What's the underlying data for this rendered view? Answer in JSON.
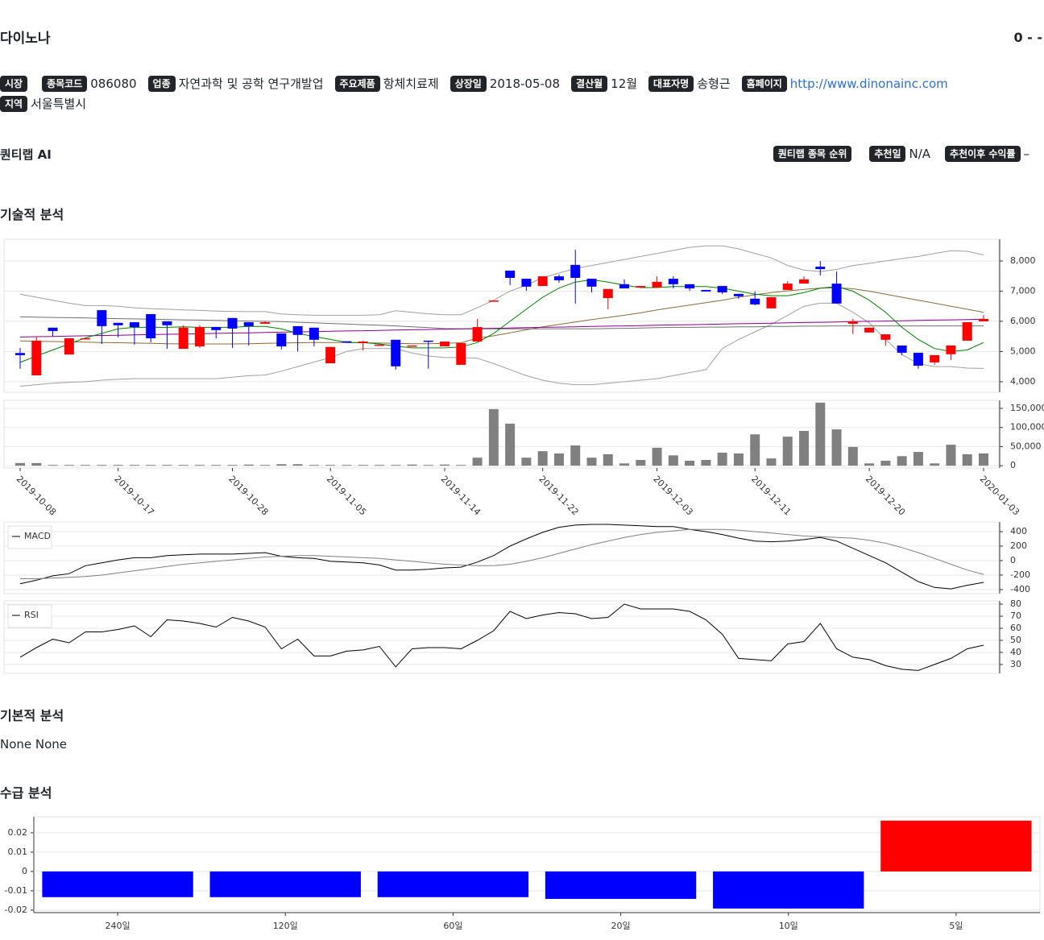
{
  "header": {
    "title": "다이노나",
    "price": "0 - -"
  },
  "info": [
    {
      "label": "시장"
    },
    {
      "label": "종목코드",
      "value": "086080"
    },
    {
      "label": "업종",
      "value": "자연과학 및 공학 연구개발업"
    },
    {
      "label": "주요제품",
      "value": "항체치료제"
    },
    {
      "label": "상장일",
      "value": "2018-05-08"
    },
    {
      "label": "결산월",
      "value": "12월"
    },
    {
      "label": "대표자명",
      "value": "송형근"
    },
    {
      "label": "홈페이지",
      "value": "http://www.dinonainc.com",
      "link": true
    },
    {
      "label": "지역",
      "value": "서울특별시"
    }
  ],
  "ai": {
    "title": "퀀티랩 AI",
    "items": [
      {
        "label": "퀀티랩 종목 순위"
      },
      {
        "label": "추천일",
        "value": "N/A"
      },
      {
        "label": "추천이후 수익률",
        "value": "–"
      }
    ]
  },
  "sections": {
    "technical": "기술적 분석",
    "fundamental": "기본적 분석",
    "fundamental_text": "None None",
    "supply": "수급 분석"
  },
  "chart_data": [
    {
      "type": "candlestick",
      "up_color": "#ff0000",
      "down_color": "#0000ff",
      "grid": true,
      "open": [
        4950,
        4210,
        5790,
        4900,
        5440,
        6370,
        5950,
        5970,
        6240,
        6000,
        5090,
        5170,
        5810,
        6110,
        5970,
        5920,
        5600,
        5840,
        5790,
        4610,
        5340,
        5280,
        5200,
        5390,
        5180,
        5360,
        5170,
        4560,
        5330,
        6670,
        7680,
        7410,
        7170,
        7490,
        7870,
        7410,
        6770,
        7230,
        7120,
        7120,
        7410,
        7230,
        7040,
        7170,
        6910,
        6750,
        6430,
        7040,
        7250,
        7810,
        7250,
        5920,
        5630,
        5390,
        5200,
        4960,
        4640,
        4910,
        5360,
        6000
      ],
      "high": [
        5120,
        5490,
        5790,
        5440,
        5440,
        6370,
        5950,
        5970,
        6240,
        6000,
        5870,
        5870,
        5810,
        6110,
        5970,
        6000,
        5600,
        5840,
        5790,
        5150,
        5340,
        5360,
        5230,
        5390,
        5200,
        5360,
        5330,
        5280,
        6080,
        6690,
        7680,
        7410,
        7490,
        7550,
        8370,
        7410,
        7070,
        7390,
        7170,
        7490,
        7490,
        7230,
        7040,
        7170,
        6910,
        6990,
        6800,
        7330,
        7490,
        8000,
        7650,
        6080,
        5790,
        5570,
        5200,
        4960,
        4880,
        5200,
        5970,
        6210
      ],
      "low": [
        4430,
        4210,
        5500,
        4900,
        5440,
        5250,
        5470,
        5230,
        5300,
        5090,
        5090,
        5120,
        5440,
        5120,
        5200,
        5920,
        5070,
        5000,
        5170,
        4610,
        5320,
        5030,
        5200,
        4400,
        5180,
        4430,
        5170,
        4560,
        5330,
        6670,
        7200,
        7010,
        7170,
        7280,
        6590,
        6960,
        6400,
        7090,
        7120,
        7120,
        7090,
        7010,
        6990,
        6900,
        6750,
        6530,
        6430,
        7040,
        7250,
        7520,
        6590,
        5580,
        5630,
        5200,
        4880,
        4430,
        4560,
        4720,
        5360,
        6000
      ],
      "close": [
        4880,
        5360,
        5680,
        5440,
        5440,
        5840,
        5870,
        5810,
        5440,
        5870,
        5790,
        5810,
        5710,
        5760,
        5840,
        5970,
        5170,
        5550,
        5390,
        5150,
        5320,
        5330,
        5230,
        4510,
        5200,
        5330,
        5330,
        5280,
        5810,
        6690,
        7440,
        7150,
        7490,
        7360,
        7440,
        7150,
        7070,
        7090,
        7170,
        7310,
        7230,
        7090,
        6990,
        6960,
        6830,
        6560,
        6800,
        7250,
        7390,
        7730,
        6590,
        6000,
        5790,
        5570,
        4960,
        4530,
        4880,
        5200,
        5970,
        6080
      ],
      "lines": [
        {
          "color": "#a0a0a0",
          "values": [
            6900,
            6800,
            6700,
            6600,
            6520,
            6520,
            6500,
            6450,
            6420,
            6400,
            6380,
            6360,
            6340,
            6330,
            6320,
            6320,
            6240,
            6220,
            6200,
            6200,
            6200,
            6200,
            6220,
            6350,
            6300,
            6250,
            6220,
            6220,
            6450,
            6700,
            7000,
            7200,
            7450,
            7600,
            7750,
            7850,
            7950,
            8050,
            8150,
            8250,
            8350,
            8450,
            8500,
            8500,
            8400,
            8250,
            8100,
            7850,
            7700,
            7650,
            7720,
            7850,
            7920,
            8000,
            8080,
            8150,
            8250,
            8340,
            8320,
            8200
          ]
        },
        {
          "color": "#a0a0a0",
          "values": [
            3850,
            3900,
            3950,
            3980,
            4000,
            4050,
            4080,
            4100,
            4100,
            4100,
            4100,
            4100,
            4100,
            4150,
            4200,
            4220,
            4350,
            4500,
            4650,
            4800,
            5000,
            5100,
            5100,
            5100,
            4950,
            4850,
            4800,
            4800,
            4780,
            4600,
            4400,
            4200,
            4050,
            3950,
            3900,
            3900,
            3950,
            4000,
            4050,
            4100,
            4200,
            4300,
            4400,
            5100,
            5400,
            5650,
            5900,
            6200,
            6500,
            6600,
            6600,
            6300,
            5950,
            5400,
            4900,
            4600,
            4500,
            4500,
            4450,
            4440
          ]
        },
        {
          "color": "#707070",
          "values": [
            6150,
            6140,
            6130,
            6120,
            6110,
            6100,
            6090,
            6080,
            6070,
            6060,
            6050,
            6040,
            6030,
            6020,
            6010,
            6000,
            5990,
            5970,
            5950,
            5930,
            5910,
            5890,
            5870,
            5850,
            5820,
            5790,
            5760,
            5750,
            5750,
            5750,
            5750,
            5750,
            5750,
            5750,
            5750,
            5750,
            5760,
            5770,
            5780,
            5790,
            5800,
            5800,
            5810,
            5810,
            5820,
            5820,
            5830,
            5830,
            5840,
            5840,
            5850,
            5850,
            5850,
            5850,
            5850,
            5850,
            5850,
            5850,
            5850,
            5850
          ]
        },
        {
          "color": "#8b6b3d",
          "values": [
            5350,
            5340,
            5330,
            5320,
            5310,
            5300,
            5290,
            5280,
            5270,
            5260,
            5250,
            5250,
            5250,
            5250,
            5260,
            5270,
            5280,
            5290,
            5300,
            5300,
            5300,
            5290,
            5280,
            5270,
            5260,
            5260,
            5270,
            5290,
            5440,
            5520,
            5620,
            5720,
            5820,
            5900,
            5980,
            6060,
            6130,
            6200,
            6280,
            6380,
            6460,
            6540,
            6620,
            6700,
            6800,
            6880,
            6950,
            7010,
            7060,
            7100,
            7110,
            7080,
            7000,
            6900,
            6800,
            6700,
            6600,
            6500,
            6400,
            6300
          ]
        },
        {
          "color": "#8b008b",
          "values": [
            5480,
            5490,
            5500,
            5510,
            5520,
            5530,
            5540,
            5550,
            5560,
            5570,
            5580,
            5590,
            5600,
            5610,
            5620,
            5630,
            5640,
            5650,
            5660,
            5670,
            5680,
            5690,
            5700,
            5710,
            5720,
            5730,
            5740,
            5750,
            5760,
            5770,
            5780,
            5790,
            5800,
            5810,
            5820,
            5830,
            5840,
            5850,
            5860,
            5870,
            5880,
            5890,
            5900,
            5910,
            5920,
            5930,
            5940,
            5950,
            5960,
            5970,
            5980,
            5990,
            6000,
            6010,
            6020,
            6030,
            6040,
            6050,
            6060,
            6070
          ]
        },
        {
          "color": "#008000",
          "values": [
            4640,
            4850,
            5050,
            5250,
            5450,
            5600,
            5750,
            5800,
            5800,
            5800,
            5820,
            5800,
            5800,
            5800,
            5830,
            5830,
            5750,
            5600,
            5500,
            5400,
            5300,
            5300,
            5250,
            5180,
            5120,
            5120,
            5120,
            5150,
            5300,
            5600,
            6000,
            6400,
            6800,
            7100,
            7300,
            7380,
            7300,
            7200,
            7120,
            7120,
            7150,
            7150,
            7150,
            7100,
            7000,
            6900,
            6850,
            6850,
            6950,
            7100,
            7150,
            7000,
            6700,
            6300,
            5800,
            5400,
            5100,
            5000,
            5050,
            5300
          ]
        }
      ],
      "ylim": [
        3650,
        8720
      ],
      "yticks": [
        {
          "value": 4000,
          "label": "4,000"
        },
        {
          "value": 5000,
          "label": "5,000"
        },
        {
          "value": 6000,
          "label": "6,000"
        },
        {
          "value": 7000,
          "label": "7,000"
        },
        {
          "value": 8000,
          "label": "8,000"
        }
      ]
    },
    {
      "type": "bar",
      "color": "#808080",
      "grid": true,
      "categories": [
        "2019-10-08",
        null,
        null,
        null,
        null,
        null,
        "2019-10-17",
        null,
        null,
        null,
        null,
        null,
        null,
        "2019-10-28",
        null,
        null,
        null,
        null,
        null,
        "2019-11-05",
        null,
        null,
        null,
        null,
        null,
        null,
        "2019-11-14",
        null,
        null,
        null,
        null,
        null,
        "2019-11-22",
        null,
        null,
        null,
        null,
        null,
        null,
        "2019-12-03",
        null,
        null,
        null,
        null,
        null,
        "2019-12-11",
        null,
        null,
        null,
        null,
        null,
        null,
        "2019-12-20",
        null,
        null,
        null,
        null,
        null,
        null,
        "2020-01-03"
      ],
      "values": [
        7000,
        7000,
        2000,
        2000,
        2000,
        2000,
        2000,
        2000,
        2000,
        2000,
        2000,
        2000,
        2000,
        2000,
        3000,
        2000,
        4000,
        4000,
        2000,
        2000,
        2000,
        2000,
        2000,
        2000,
        3000,
        2000,
        3000,
        2000,
        21000,
        148000,
        110000,
        21000,
        38000,
        32000,
        53000,
        21000,
        30000,
        6000,
        15000,
        47000,
        27000,
        13000,
        15000,
        34000,
        32000,
        82000,
        19000,
        76000,
        91000,
        165000,
        95000,
        49000,
        6000,
        13000,
        25000,
        36000,
        6000,
        55000,
        30000,
        32000
      ],
      "ylim": [
        -6000,
        171000
      ],
      "yticks": [
        0,
        {
          "value": 50000,
          "label": "50,000"
        },
        {
          "value": 100000,
          "label": "100,000"
        },
        {
          "value": 150000,
          "label": "150,000"
        }
      ]
    },
    {
      "type": "line",
      "grid": true,
      "legend": "upper left",
      "series": [
        {
          "name": "MACD",
          "color": "#000000",
          "values": [
            -320,
            -270,
            -210,
            -180,
            -70,
            -30,
            10,
            40,
            40,
            70,
            80,
            90,
            90,
            90,
            100,
            110,
            60,
            40,
            30,
            -10,
            -20,
            -30,
            -60,
            -130,
            -130,
            -120,
            -100,
            -90,
            -20,
            70,
            200,
            300,
            390,
            460,
            490,
            500,
            500,
            490,
            480,
            470,
            470,
            430,
            400,
            360,
            310,
            270,
            260,
            270,
            290,
            320,
            270,
            170,
            70,
            -30,
            -160,
            -290,
            -370,
            -390,
            -340,
            -300
          ]
        },
        {
          "color": "#808080",
          "values": [
            -250,
            -250,
            -240,
            -230,
            -220,
            -200,
            -170,
            -140,
            -110,
            -80,
            -50,
            -30,
            -10,
            10,
            30,
            50,
            60,
            70,
            70,
            60,
            50,
            40,
            30,
            10,
            -10,
            -30,
            -50,
            -60,
            -70,
            -70,
            -50,
            -10,
            40,
            100,
            160,
            220,
            270,
            320,
            360,
            390,
            410,
            430,
            430,
            430,
            420,
            400,
            380,
            360,
            340,
            330,
            320,
            310,
            280,
            240,
            180,
            110,
            30,
            -50,
            -130,
            -190
          ]
        }
      ],
      "ylim": [
        -456,
        533
      ],
      "yticks": [
        -400,
        -200,
        0,
        200,
        400
      ]
    },
    {
      "type": "line",
      "grid": true,
      "legend": "upper left",
      "series": [
        {
          "name": "RSI",
          "color": "#000000",
          "values": [
            36,
            44,
            51,
            48,
            57,
            57,
            59,
            62,
            53,
            67,
            66,
            64,
            61,
            69,
            66,
            61,
            43,
            51,
            37,
            37,
            41,
            42,
            45,
            28,
            43,
            44,
            44,
            43,
            50,
            58,
            74,
            68,
            71,
            73,
            72,
            68,
            69,
            80,
            76,
            76,
            76,
            74,
            67,
            55,
            35,
            34,
            33,
            47,
            49,
            64,
            43,
            36,
            34,
            29,
            26,
            25,
            30,
            35,
            43,
            46
          ]
        }
      ],
      "ylim": [
        22.6,
        82.7
      ],
      "yticks": [
        30,
        40,
        50,
        60,
        70,
        80
      ]
    },
    {
      "type": "bar",
      "grid": true,
      "categories": [
        "240일",
        "120일",
        "60일",
        "20일",
        "10일",
        "5일"
      ],
      "values": [
        -0.0133,
        -0.0133,
        -0.0133,
        -0.0142,
        -0.0192,
        0.0263
      ],
      "colors": [
        "#0000ff",
        "#0000ff",
        "#0000ff",
        "#0000ff",
        "#0000ff",
        "#ff0000"
      ],
      "ylim": [
        -0.0213,
        0.0283
      ],
      "yticks": [
        -0.02,
        -0.01,
        0,
        0.01,
        0.02
      ]
    }
  ]
}
